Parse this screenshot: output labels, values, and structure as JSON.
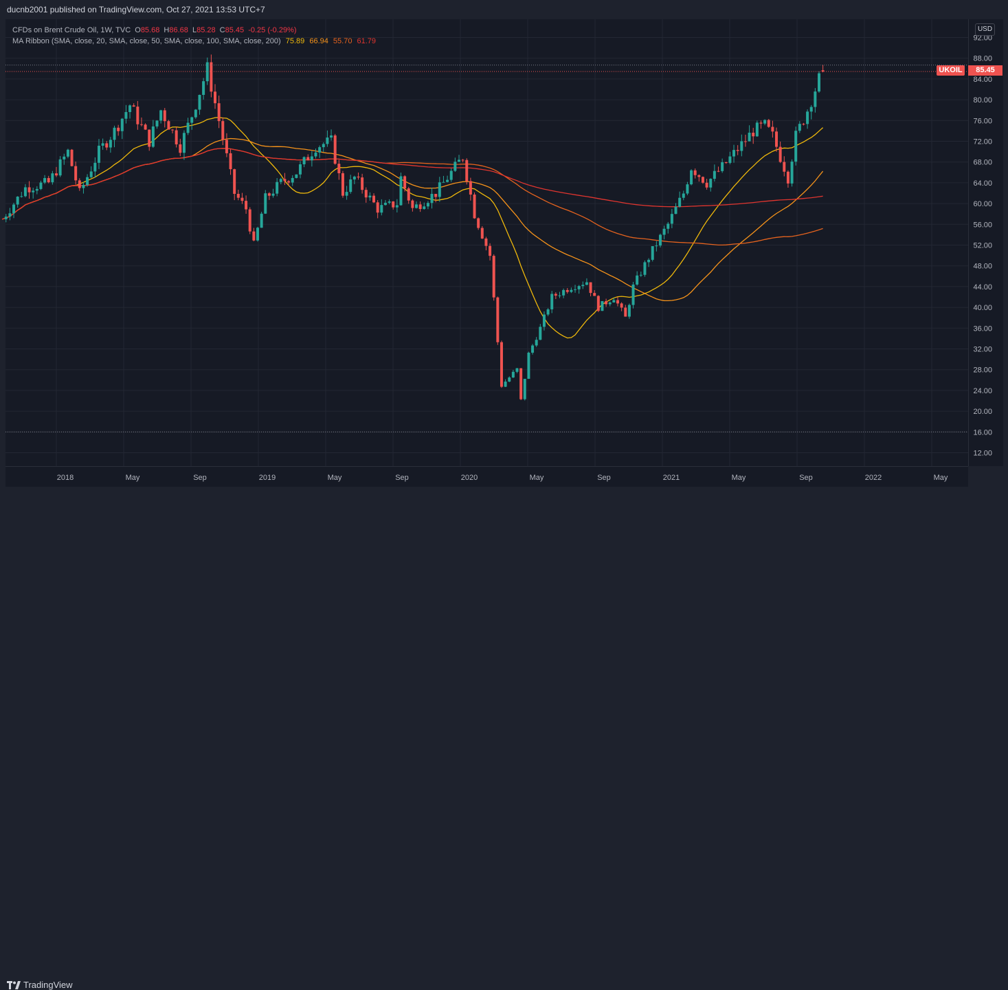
{
  "header": {
    "published": "ducnb2001 published on TradingView.com, Oct 27, 2021 13:53 UTC+7"
  },
  "legend": {
    "symbol": "CFDs on Brent Crude Oil, 1W, TVC",
    "o_label": "O",
    "o_value": "85.68",
    "h_label": "H",
    "h_value": "86.68",
    "l_label": "L",
    "l_value": "85.28",
    "c_label": "C",
    "c_value": "85.45",
    "change": "-0.25 (-0.29%)",
    "ma_label": "MA Ribbon (SMA, close, 20, SMA, close, 50, SMA, close, 100, SMA, close, 200)",
    "ma_values": [
      "75.89",
      "66.94",
      "55.70",
      "61.79"
    ]
  },
  "price_scale": {
    "currency": "USD",
    "ticks": [
      "92.00",
      "88.00",
      "84.00",
      "80.00",
      "76.00",
      "72.00",
      "68.00",
      "64.00",
      "60.00",
      "56.00",
      "52.00",
      "48.00",
      "44.00",
      "40.00",
      "36.00",
      "32.00",
      "28.00",
      "24.00",
      "20.00",
      "16.00",
      "12.00"
    ]
  },
  "price_tag": {
    "symbol": "UKOIL",
    "value": "85.45"
  },
  "footer": {
    "brand": "TradingView"
  },
  "colors": {
    "up": "#26a69a",
    "down": "#ef5350",
    "ma20": "#f0b90b",
    "ma50": "#f7931a",
    "ma100": "#e6631e",
    "ma200": "#e0352f"
  },
  "chart_data": {
    "type": "candlestick",
    "title": "CFDs on Brent Crude Oil, 1W, TVC",
    "ylim": [
      10,
      93
    ],
    "y_ticks": [
      12,
      16,
      20,
      24,
      28,
      32,
      36,
      40,
      44,
      48,
      52,
      56,
      60,
      64,
      68,
      72,
      76,
      80,
      84,
      88,
      92
    ],
    "x_ticks": [
      {
        "label": "2018",
        "month": 0
      },
      {
        "label": "May",
        "month": 4
      },
      {
        "label": "Sep",
        "month": 8
      },
      {
        "label": "2019",
        "month": 12
      },
      {
        "label": "May",
        "month": 16
      },
      {
        "label": "Sep",
        "month": 20
      },
      {
        "label": "2020",
        "month": 24
      },
      {
        "label": "May",
        "month": 28
      },
      {
        "label": "Sep",
        "month": 32
      },
      {
        "label": "2021",
        "month": 36
      },
      {
        "label": "May",
        "month": 40
      },
      {
        "label": "Sep",
        "month": 44
      },
      {
        "label": "2022",
        "month": 48
      },
      {
        "label": "May",
        "month": 52
      }
    ],
    "anchors": [
      [
        "2017-09-25",
        57
      ],
      [
        "2017-11-06",
        63
      ],
      [
        "2017-12-18",
        64
      ],
      [
        "2018-01-22",
        70
      ],
      [
        "2018-02-12",
        62
      ],
      [
        "2018-03-19",
        70
      ],
      [
        "2018-04-16",
        74
      ],
      [
        "2018-05-14",
        79
      ],
      [
        "2018-06-18",
        72
      ],
      [
        "2018-07-09",
        78
      ],
      [
        "2018-08-13",
        71
      ],
      [
        "2018-09-03",
        77
      ],
      [
        "2018-10-01",
        86
      ],
      [
        "2018-10-22",
        76
      ],
      [
        "2018-11-19",
        62
      ],
      [
        "2018-12-10",
        59
      ],
      [
        "2018-12-24",
        52
      ],
      [
        "2019-01-14",
        61
      ],
      [
        "2019-02-11",
        64
      ],
      [
        "2019-03-11",
        66
      ],
      [
        "2019-04-15",
        71
      ],
      [
        "2019-05-13",
        72
      ],
      [
        "2019-06-03",
        62
      ],
      [
        "2019-06-24",
        65
      ],
      [
        "2019-08-05",
        59
      ],
      [
        "2019-09-09",
        60
      ],
      [
        "2019-09-16",
        65
      ],
      [
        "2019-10-07",
        59
      ],
      [
        "2019-11-18",
        62
      ],
      [
        "2020-01-06",
        69
      ],
      [
        "2020-01-27",
        58
      ],
      [
        "2020-02-24",
        50
      ],
      [
        "2020-03-16",
        25
      ],
      [
        "2020-04-13",
        28
      ],
      [
        "2020-04-20",
        22
      ],
      [
        "2020-05-04",
        31
      ],
      [
        "2020-05-25",
        36
      ],
      [
        "2020-06-15",
        42
      ],
      [
        "2020-07-20",
        44
      ],
      [
        "2020-08-17",
        45
      ],
      [
        "2020-09-07",
        40
      ],
      [
        "2020-10-05",
        42
      ],
      [
        "2020-10-26",
        38
      ],
      [
        "2020-11-09",
        44
      ],
      [
        "2020-12-14",
        51
      ],
      [
        "2021-01-11",
        56
      ],
      [
        "2021-02-08",
        62
      ],
      [
        "2021-02-22",
        67
      ],
      [
        "2021-03-22",
        64
      ],
      [
        "2021-04-19",
        67
      ],
      [
        "2021-06-14",
        74
      ],
      [
        "2021-07-05",
        75
      ],
      [
        "2021-07-19",
        73
      ],
      [
        "2021-08-16",
        65
      ],
      [
        "2021-08-30",
        73
      ],
      [
        "2021-09-20",
        78
      ],
      [
        "2021-10-18",
        86
      ]
    ],
    "last": {
      "open": 85.68,
      "high": 86.68,
      "low": 85.28,
      "close": 85.45
    },
    "series": [
      {
        "name": "MA 20",
        "period": 20,
        "last": 75.89
      },
      {
        "name": "MA 50",
        "period": 50,
        "last": 66.94
      },
      {
        "name": "MA 100",
        "period": 100,
        "last": 55.7
      },
      {
        "name": "MA 200",
        "period": 200,
        "last": 61.79
      }
    ]
  }
}
